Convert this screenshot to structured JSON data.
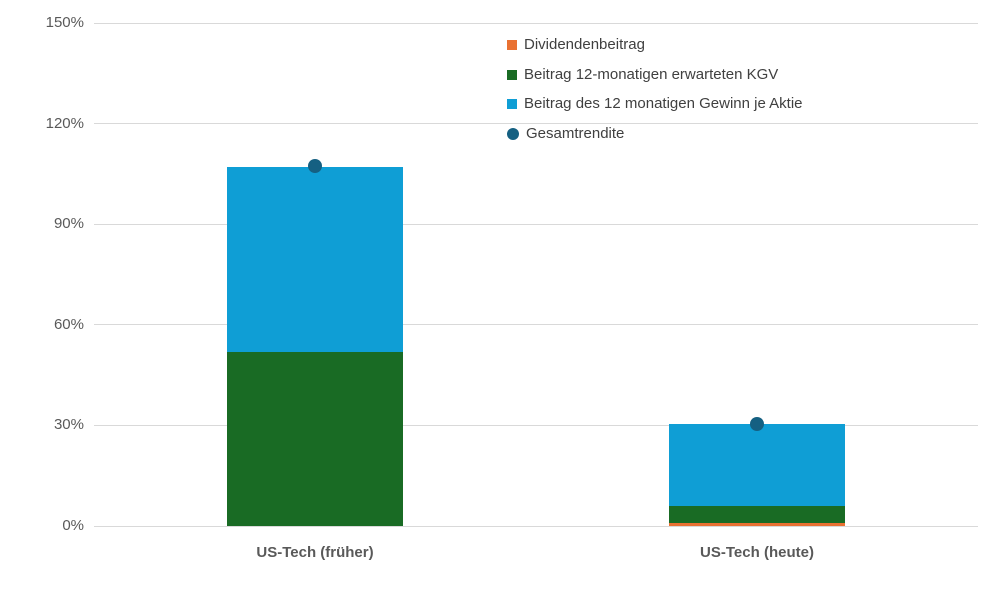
{
  "colors": {
    "dividend": "#E97132",
    "kgv": "#196B24",
    "eps": "#0F9ED5",
    "total": "#156082",
    "gridline": "#D9D9D9",
    "axis_text": "#595959",
    "category_text": "#595959",
    "legend_text": "#404040",
    "background": "#FFFFFF"
  },
  "chart_data": {
    "type": "bar",
    "subtype": "stacked-columns-with-total-marker",
    "title": "",
    "xlabel": "",
    "ylabel": "",
    "categories": [
      "US-Tech (früher)",
      "US-Tech (heute)"
    ],
    "series": [
      {
        "name": "Dividendenbeitrag",
        "render": "stack",
        "color_key": "dividend",
        "values": [
          0,
          1
        ]
      },
      {
        "name": "Beitrag 12-monatigen erwarteten KGV",
        "render": "stack",
        "color_key": "kgv",
        "values": [
          52,
          5
        ]
      },
      {
        "name": "Beitrag des 12 monatigen Gewinn je Aktie",
        "render": "stack",
        "color_key": "eps",
        "values": [
          55,
          24.5
        ]
      },
      {
        "name": "Gesamtrendite",
        "render": "point",
        "color_key": "total",
        "values": [
          107.5,
          30.5
        ]
      }
    ],
    "ylim": [
      0,
      150
    ],
    "yticks": [
      {
        "value": 0,
        "label": "0%"
      },
      {
        "value": 30,
        "label": "30%"
      },
      {
        "value": 60,
        "label": "60%"
      },
      {
        "value": 90,
        "label": "90%"
      },
      {
        "value": 120,
        "label": "120%"
      },
      {
        "value": 150,
        "label": "150%"
      }
    ],
    "grid": true,
    "legend_position": "top-center-inside"
  }
}
